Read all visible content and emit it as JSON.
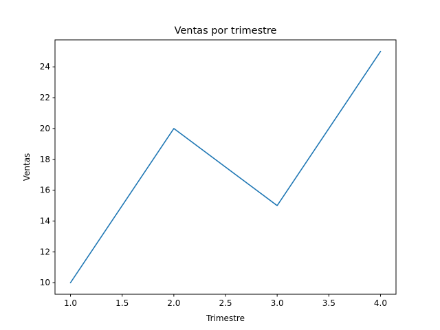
{
  "chart_data": {
    "type": "line",
    "title": "Ventas por trimestre",
    "xlabel": "Trimestre",
    "ylabel": "Ventas",
    "xlim": [
      0.85,
      4.15
    ],
    "ylim": [
      9.25,
      25.75
    ],
    "x_ticks": [
      1.0,
      1.5,
      2.0,
      2.5,
      3.0,
      3.5,
      4.0
    ],
    "x_tick_labels": [
      "1.0",
      "1.5",
      "2.0",
      "2.5",
      "3.0",
      "3.5",
      "4.0"
    ],
    "y_ticks": [
      10,
      12,
      14,
      16,
      18,
      20,
      22,
      24
    ],
    "y_tick_labels": [
      "10",
      "12",
      "14",
      "16",
      "18",
      "20",
      "22",
      "24"
    ],
    "grid": false,
    "series": [
      {
        "color": "#1f77b4",
        "x": [
          1,
          2,
          3,
          4
        ],
        "y": [
          10,
          20,
          15,
          25
        ]
      }
    ]
  }
}
